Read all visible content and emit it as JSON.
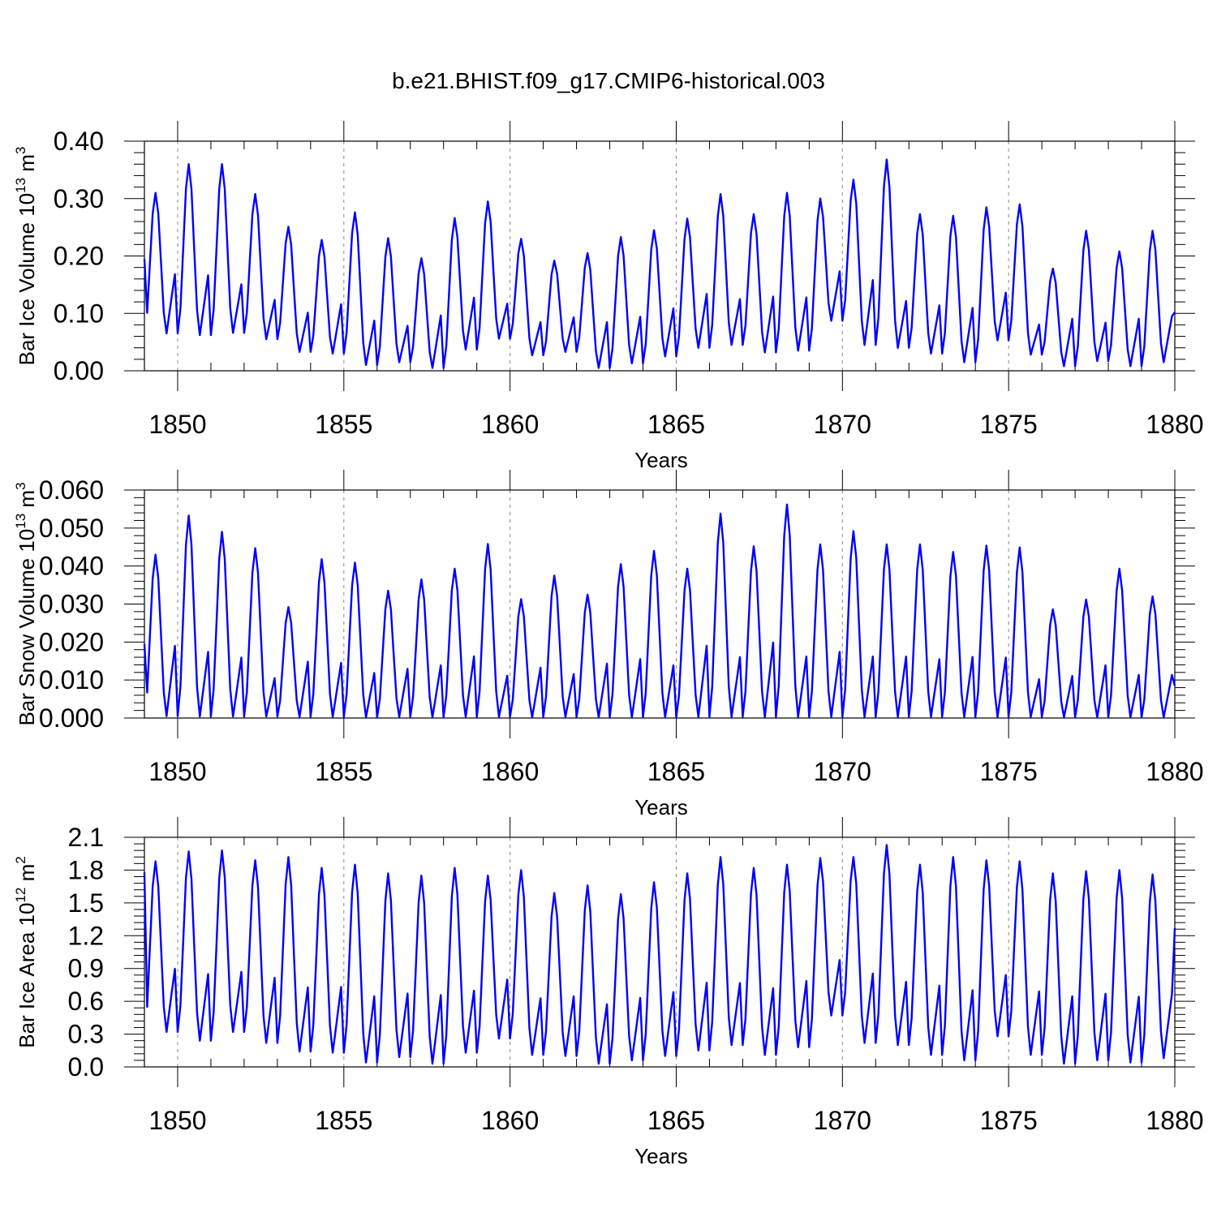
{
  "title": "b.e21.BHIST.f09_g17.CMIP6-historical.003",
  "colors": {
    "line": "#0000ff",
    "axis": "#000000",
    "grid": "#888888"
  },
  "chart_data": [
    {
      "type": "line",
      "title": "",
      "xlabel": "Years",
      "ylabel": "Bar Ice Volume 10",
      "ylabel_exp1": "13",
      "ylabel_unit": " m",
      "ylabel_exp2": "3",
      "xlim": [
        1849,
        1880
      ],
      "ylim": [
        0.0,
        0.4
      ],
      "xticks": [
        1850,
        1855,
        1860,
        1865,
        1870,
        1875,
        1880
      ],
      "xtick_labels": [
        "1850",
        "1855",
        "1860",
        "1865",
        "1870",
        "1875",
        "1880"
      ],
      "yticks": [
        0.0,
        0.1,
        0.2,
        0.3,
        0.4
      ],
      "ytick_labels": [
        "0.00",
        "0.10",
        "0.20",
        "0.30",
        "0.40"
      ],
      "grid_x_dashed": true,
      "series": [
        {
          "name": "Bar Ice Volume",
          "start": 1849.0,
          "step": 0.08333,
          "annual_min": [
            0.065,
            0.062,
            0.066,
            0.055,
            0.033,
            0.03,
            0.01,
            0.015,
            0.005,
            0.037,
            0.056,
            0.027,
            0.033,
            0.005,
            0.013,
            0.025,
            0.04,
            0.045,
            0.032,
            0.035,
            0.087,
            0.045,
            0.04,
            0.03,
            0.015,
            0.053,
            0.028,
            0.008,
            0.017,
            0.008,
            0.015
          ],
          "annual_max": [
            0.31,
            0.36,
            0.36,
            0.308,
            0.251,
            0.228,
            0.276,
            0.231,
            0.196,
            0.266,
            0.295,
            0.23,
            0.192,
            0.205,
            0.233,
            0.245,
            0.265,
            0.308,
            0.273,
            0.31,
            0.3,
            0.333,
            0.368,
            0.273,
            0.27,
            0.285,
            0.29,
            0.178,
            0.244,
            0.208,
            0.244
          ],
          "start_value": 0.195,
          "end_value": 0.102
        }
      ]
    },
    {
      "type": "line",
      "title": "",
      "xlabel": "Years",
      "ylabel": "Bar Snow Volume 10",
      "ylabel_exp1": "13",
      "ylabel_unit": " m",
      "ylabel_exp2": "3",
      "xlim": [
        1849,
        1880
      ],
      "ylim": [
        0.0,
        0.06
      ],
      "xticks": [
        1850,
        1855,
        1860,
        1865,
        1870,
        1875,
        1880
      ],
      "xtick_labels": [
        "1850",
        "1855",
        "1860",
        "1865",
        "1870",
        "1875",
        "1880"
      ],
      "yticks": [
        0.0,
        0.01,
        0.02,
        0.03,
        0.04,
        0.05,
        0.06
      ],
      "ytick_labels": [
        "0.000",
        "0.010",
        "0.020",
        "0.030",
        "0.040",
        "0.050",
        "0.060"
      ],
      "grid_x_dashed": true,
      "series": [
        {
          "name": "Bar Snow Volume",
          "start": 1849.0,
          "step": 0.08333,
          "annual_min": [
            0.0005,
            0.0004,
            0.0004,
            0.0004,
            0.0003,
            0.0003,
            0.0002,
            0.0003,
            0.0002,
            0.0003,
            0.0003,
            0.0002,
            0.0003,
            0.0002,
            0.0002,
            0.0002,
            0.0003,
            0.0003,
            0.0003,
            0.0003,
            0.0003,
            0.0003,
            0.0003,
            0.0003,
            0.0003,
            0.0003,
            0.0003,
            0.0002,
            0.0002,
            0.0002,
            0.0002
          ],
          "annual_max": [
            0.043,
            0.0533,
            0.049,
            0.0447,
            0.0292,
            0.0418,
            0.0409,
            0.0335,
            0.0365,
            0.0393,
            0.0458,
            0.0313,
            0.0375,
            0.0325,
            0.0405,
            0.044,
            0.0393,
            0.0538,
            0.0452,
            0.0562,
            0.0457,
            0.0492,
            0.0457,
            0.0457,
            0.0437,
            0.0454,
            0.0449,
            0.0286,
            0.0312,
            0.0393,
            0.032
          ],
          "start_value": 0.0195,
          "end_value": 0.0085
        }
      ]
    },
    {
      "type": "line",
      "title": "",
      "xlabel": "Years",
      "ylabel": "Bar Ice Area 10",
      "ylabel_exp1": "12",
      "ylabel_unit": " m",
      "ylabel_exp2": "2",
      "xlim": [
        1849,
        1880
      ],
      "ylim": [
        0.0,
        2.1
      ],
      "xticks": [
        1850,
        1855,
        1860,
        1865,
        1870,
        1875,
        1880
      ],
      "xtick_labels": [
        "1850",
        "1855",
        "1860",
        "1865",
        "1870",
        "1875",
        "1880"
      ],
      "yticks": [
        0.0,
        0.3,
        0.6,
        0.9,
        1.2,
        1.5,
        1.8,
        2.1
      ],
      "ytick_labels": [
        "0.0",
        "0.3",
        "0.6",
        "0.9",
        "1.2",
        "1.5",
        "1.8",
        "2.1"
      ],
      "grid_x_dashed": true,
      "series": [
        {
          "name": "Bar Ice Area",
          "start": 1849.0,
          "step": 0.08333,
          "annual_min": [
            0.32,
            0.24,
            0.32,
            0.22,
            0.14,
            0.13,
            0.04,
            0.09,
            0.03,
            0.13,
            0.26,
            0.11,
            0.1,
            0.03,
            0.06,
            0.1,
            0.15,
            0.2,
            0.11,
            0.18,
            0.47,
            0.22,
            0.2,
            0.11,
            0.06,
            0.28,
            0.11,
            0.03,
            0.06,
            0.04,
            0.08
          ],
          "annual_max": [
            1.88,
            1.97,
            1.98,
            1.89,
            1.92,
            1.82,
            1.85,
            1.77,
            1.75,
            1.82,
            1.75,
            1.8,
            1.59,
            1.66,
            1.58,
            1.69,
            1.77,
            1.92,
            1.82,
            1.85,
            1.91,
            1.92,
            2.03,
            1.85,
            1.92,
            1.89,
            1.88,
            1.77,
            1.79,
            1.8,
            1.76
          ],
          "start_value": 1.78,
          "end_value": 1.27
        }
      ]
    }
  ]
}
